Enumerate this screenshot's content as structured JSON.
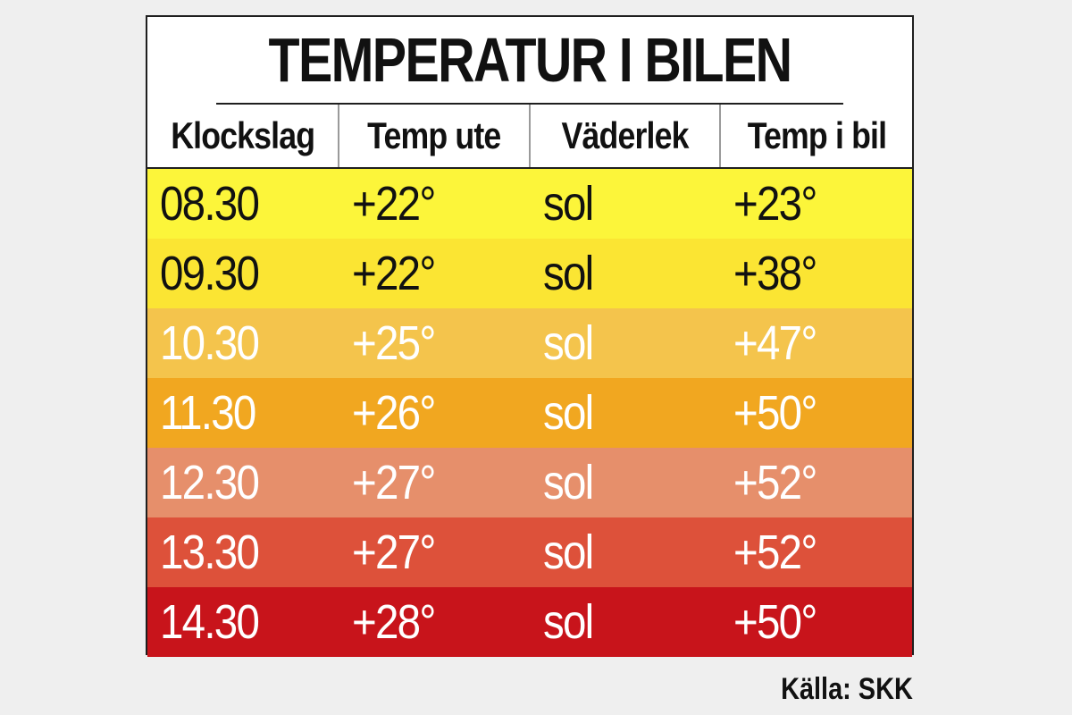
{
  "chart_data": {
    "type": "table",
    "title": "TEMPERATUR I BILEN",
    "columns": [
      "Klockslag",
      "Temp ute",
      "Väderlek",
      "Temp i bil"
    ],
    "rows": [
      {
        "cells": [
          "08.30",
          "+22°",
          "sol",
          "+23°"
        ],
        "bg": "#fcf53a",
        "fg": "#111111"
      },
      {
        "cells": [
          "09.30",
          "+22°",
          "sol",
          "+38°"
        ],
        "bg": "#fbe533",
        "fg": "#111111"
      },
      {
        "cells": [
          "10.30",
          "+25°",
          "sol",
          "+47°"
        ],
        "bg": "#f4c44c",
        "fg": "#ffffff"
      },
      {
        "cells": [
          "11.30",
          "+26°",
          "sol",
          "+50°"
        ],
        "bg": "#f1a720",
        "fg": "#ffffff"
      },
      {
        "cells": [
          "12.30",
          "+27°",
          "sol",
          "+52°"
        ],
        "bg": "#e68f6b",
        "fg": "#ffffff"
      },
      {
        "cells": [
          "13.30",
          "+27°",
          "sol",
          "+52°"
        ],
        "bg": "#dd513a",
        "fg": "#ffffff"
      },
      {
        "cells": [
          "14.30",
          "+28°",
          "sol",
          "+50°"
        ],
        "bg": "#c8141b",
        "fg": "#ffffff"
      }
    ]
  },
  "source": "Källa: SKK"
}
